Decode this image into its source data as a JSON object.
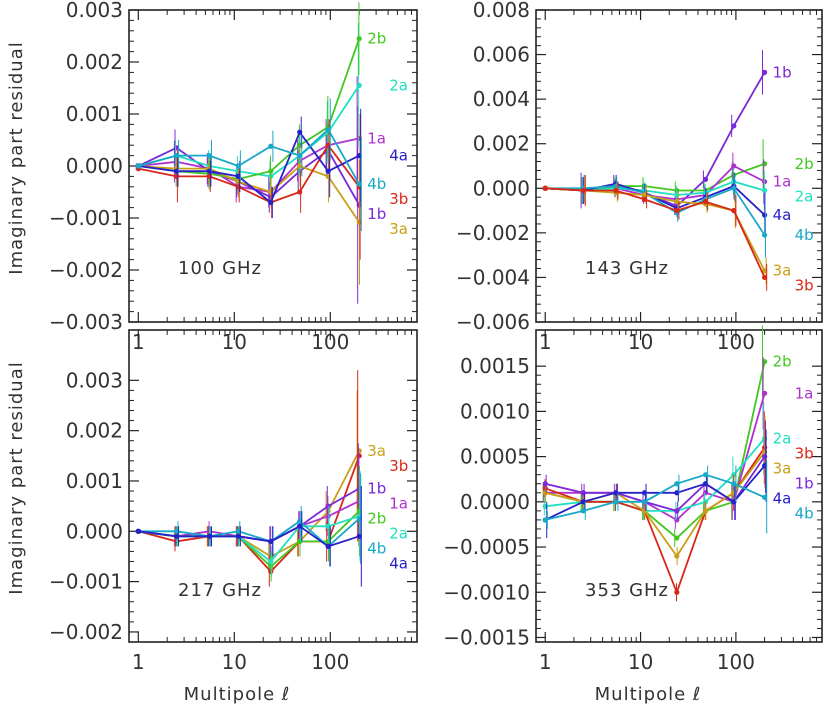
{
  "figure": {
    "ylabel": "Imaginary part residual",
    "xlabel": "Multipole ℓ"
  },
  "chart_data": [
    {
      "type": "line",
      "title": "100 GHz",
      "xscale": "log",
      "xlim": [
        0.8,
        800
      ],
      "ylim": [
        -0.003,
        0.003
      ],
      "yticks": [
        -0.003,
        -0.002,
        -0.001,
        0.0,
        0.001,
        0.002,
        0.003
      ],
      "ytick_labels": [
        "−0.003",
        "−0.002",
        "−0.001",
        "0.000",
        "0.001",
        "0.002",
        "0.003"
      ],
      "xticks": [
        1,
        10,
        100
      ],
      "xtick_labels": [
        "1",
        "10",
        "100"
      ],
      "x": [
        1,
        2.5,
        5.5,
        11,
        24,
        48,
        95,
        200
      ],
      "series": [
        {
          "name": "1a",
          "color": "#b030d0",
          "values": [
            0.0,
            8e-05,
            -5e-05,
            -0.0004,
            -0.0005,
            0.0001,
            0.0004,
            0.00053
          ],
          "err": [
            5e-05,
            0.0004,
            0.0003,
            0.0003,
            0.0003,
            0.0004,
            0.0005,
            0.0012
          ]
        },
        {
          "name": "1b",
          "color": "#7a28d8",
          "values": [
            0.0,
            0.00035,
            -0.0001,
            -0.0003,
            -0.0006,
            -0.0001,
            0.0003,
            -0.00075
          ],
          "err": [
            5e-05,
            0.00035,
            0.0003,
            0.0003,
            0.0003,
            0.0004,
            0.0005,
            0.0019
          ]
        },
        {
          "name": "2a",
          "color": "#20e0c0",
          "values": [
            0.0,
            0.0002,
            0.0,
            -0.0001,
            -0.0002,
            0.0002,
            0.00065,
            0.00155
          ],
          "err": [
            5e-05,
            0.0003,
            0.0003,
            0.0003,
            0.0003,
            0.0004,
            0.0006,
            0.0012
          ]
        },
        {
          "name": "2b",
          "color": "#40c820",
          "values": [
            0.0,
            -0.0001,
            -0.00015,
            -0.00025,
            -0.0001,
            0.0004,
            0.00075,
            0.00245
          ],
          "err": [
            5e-05,
            0.0003,
            0.0003,
            0.0003,
            0.0003,
            0.0004,
            0.0006,
            0.0007
          ]
        },
        {
          "name": "3a",
          "color": "#c8a018",
          "values": [
            0.0,
            -5e-05,
            -5e-05,
            -0.0003,
            -0.0005,
            0.0,
            -0.0002,
            -0.00108
          ],
          "err": [
            5e-05,
            0.0003,
            0.0003,
            0.0003,
            0.0003,
            0.0004,
            0.0005,
            0.0012
          ]
        },
        {
          "name": "3b",
          "color": "#d82818",
          "values": [
            -5e-05,
            -0.0002,
            -0.0002,
            -0.0004,
            -0.0007,
            -0.0005,
            0.0004,
            -0.0004
          ],
          "err": [
            5e-05,
            0.0005,
            0.0003,
            0.0003,
            0.0003,
            0.0004,
            0.0005,
            0.0014
          ]
        },
        {
          "name": "4a",
          "color": "#2820c8",
          "values": [
            0.0,
            -0.0001,
            -0.0001,
            -0.0002,
            -0.0007,
            0.00065,
            -0.0001,
            0.0002
          ],
          "err": [
            5e-05,
            0.0003,
            0.0003,
            0.0003,
            0.0003,
            0.0003,
            0.0005,
            0.0009
          ]
        },
        {
          "name": "4b",
          "color": "#18a8c8",
          "values": [
            0.0,
            0.0002,
            0.0002,
            0.0,
            0.00038,
            0.0002,
            0.0007,
            -0.00035
          ],
          "err": [
            5e-05,
            0.0003,
            0.0003,
            0.0003,
            0.0003,
            0.0004,
            0.0006,
            0.0009
          ]
        }
      ]
    },
    {
      "type": "line",
      "title": "143 GHz",
      "xscale": "log",
      "xlim": [
        0.8,
        800
      ],
      "ylim": [
        -0.006,
        0.008
      ],
      "yticks": [
        -0.006,
        -0.004,
        -0.002,
        0.0,
        0.002,
        0.004,
        0.006,
        0.008
      ],
      "ytick_labels": [
        "−0.006",
        "−0.004",
        "−0.002",
        "0.000",
        "0.002",
        "0.004",
        "0.006",
        "0.008"
      ],
      "xticks": [
        1,
        10,
        100
      ],
      "xtick_labels": [
        "1",
        "10",
        "100"
      ],
      "x": [
        1,
        2.5,
        5.5,
        11,
        24,
        48,
        95,
        200
      ],
      "series": [
        {
          "name": "1b",
          "color": "#7a28d8",
          "values": [
            0.0,
            -0.0001,
            0.0002,
            -0.0002,
            -0.0008,
            0.0004,
            0.0028,
            0.0052
          ],
          "err": [
            8e-05,
            0.0008,
            0.0004,
            0.0004,
            0.0004,
            0.0004,
            0.0005,
            0.001
          ]
        },
        {
          "name": "2b",
          "color": "#40c820",
          "values": [
            0.0,
            -0.0001,
            0.0001,
            0.0001,
            -0.0001,
            -0.0001,
            0.0006,
            0.0011
          ],
          "err": [
            8e-05,
            0.0006,
            0.0004,
            0.0004,
            0.0004,
            0.0004,
            0.0006,
            0.0011
          ]
        },
        {
          "name": "1a",
          "color": "#b030d0",
          "values": [
            0.0,
            -0.0001,
            0.0,
            -0.0003,
            -0.0005,
            -0.0003,
            0.001,
            0.0003
          ],
          "err": [
            8e-05,
            0.0006,
            0.0004,
            0.0004,
            0.0004,
            0.0004,
            0.0006,
            0.001
          ]
        },
        {
          "name": "2a",
          "color": "#20e0c0",
          "values": [
            0.0,
            -0.0001,
            0.0,
            -0.0001,
            -0.0003,
            -0.0002,
            0.0003,
            -0.0001
          ],
          "err": [
            8e-05,
            0.0006,
            0.0004,
            0.0004,
            0.0004,
            0.0004,
            0.0006,
            0.0009
          ]
        },
        {
          "name": "4a",
          "color": "#2820c8",
          "values": [
            0.0,
            -0.0001,
            0.0002,
            -0.0002,
            -0.0009,
            -0.0004,
            0.0001,
            -0.0012
          ],
          "err": [
            8e-05,
            0.0006,
            0.0004,
            0.0004,
            0.0004,
            0.0004,
            0.0006,
            0.001
          ]
        },
        {
          "name": "4b",
          "color": "#18a8c8",
          "values": [
            0.0,
            0.0,
            0.0001,
            -0.0002,
            -0.0011,
            -0.0005,
            0.0,
            -0.0021
          ],
          "err": [
            8e-05,
            0.0006,
            0.0004,
            0.0004,
            0.0004,
            0.0004,
            0.0006,
            0.001
          ]
        },
        {
          "name": "3a",
          "color": "#c8a018",
          "values": [
            0.0,
            -0.0001,
            -0.0002,
            -0.0003,
            -0.0006,
            -0.0007,
            -0.001,
            -0.0037
          ],
          "err": [
            8e-05,
            0.0006,
            0.0004,
            0.0004,
            0.0004,
            0.0004,
            0.0008,
            0.0006
          ]
        },
        {
          "name": "3b",
          "color": "#d82818",
          "values": [
            0.0,
            -0.0001,
            -0.0001,
            -0.0005,
            -0.001,
            -0.0006,
            -0.001,
            -0.004
          ],
          "err": [
            8e-05,
            0.0007,
            0.0004,
            0.0004,
            0.0004,
            0.0004,
            0.0007,
            0.0006
          ]
        }
      ]
    },
    {
      "type": "line",
      "title": "217 GHz",
      "xscale": "log",
      "xlim": [
        0.8,
        800
      ],
      "ylim": [
        -0.0022,
        0.004
      ],
      "yticks": [
        -0.002,
        -0.001,
        0.0,
        0.001,
        0.002,
        0.003
      ],
      "ytick_labels": [
        "−0.002",
        "−0.001",
        "0.000",
        "0.001",
        "0.002",
        "0.003"
      ],
      "xticks": [
        1,
        10,
        100
      ],
      "xtick_labels": [
        "1",
        "10",
        "100"
      ],
      "x": [
        1,
        2.5,
        5.5,
        11,
        24,
        48,
        95,
        200
      ],
      "series": [
        {
          "name": "3a",
          "color": "#c8a018",
          "values": [
            0.0,
            -0.0001,
            -0.0001,
            -0.0001,
            -0.0005,
            -0.0002,
            0.0004,
            0.0016
          ],
          "err": [
            4e-05,
            0.0002,
            0.0002,
            0.0002,
            0.0003,
            0.0003,
            0.0004,
            0.0012
          ]
        },
        {
          "name": "3b",
          "color": "#d82818",
          "values": [
            0.0,
            -0.0002,
            -0.0001,
            -0.0001,
            -0.0008,
            -0.0002,
            -0.0002,
            0.0015
          ],
          "err": [
            4e-05,
            0.0002,
            0.0002,
            0.0002,
            0.0003,
            0.0003,
            0.0004,
            0.0017
          ]
        },
        {
          "name": "1b",
          "color": "#7a28d8",
          "values": [
            0.0,
            -0.0001,
            -0.0001,
            -0.0001,
            -0.0002,
            0.0001,
            0.0005,
            0.00085
          ],
          "err": [
            4e-05,
            0.0002,
            0.0002,
            0.0002,
            0.0003,
            0.0003,
            0.0004,
            0.0009
          ]
        },
        {
          "name": "1a",
          "color": "#b030d0",
          "values": [
            0.0,
            -0.0001,
            0.0,
            -0.0001,
            -0.0002,
            0.0001,
            0.0003,
            0.0006
          ],
          "err": [
            4e-05,
            0.0002,
            0.0002,
            0.0002,
            0.0003,
            0.0003,
            0.0004,
            0.0009
          ]
        },
        {
          "name": "2b",
          "color": "#40c820",
          "values": [
            0.0,
            -0.0001,
            -0.0001,
            -0.0001,
            -0.0007,
            -0.0002,
            -0.0002,
            0.0004
          ],
          "err": [
            4e-05,
            0.0002,
            0.0002,
            0.0002,
            0.0003,
            0.0003,
            0.0004,
            0.0009
          ]
        },
        {
          "name": "2a",
          "color": "#20e0c0",
          "values": [
            0.0,
            -0.0001,
            -0.0001,
            -0.0001,
            -0.0006,
            0.0001,
            0.0001,
            0.0003
          ],
          "err": [
            4e-05,
            0.0002,
            0.0002,
            0.0002,
            0.0003,
            0.0003,
            0.0004,
            0.0009
          ]
        },
        {
          "name": "4b",
          "color": "#18a8c8",
          "values": [
            0.0,
            0.0,
            -0.0001,
            0.0,
            -0.0002,
            0.0002,
            -0.0003,
            0.00025
          ],
          "err": [
            4e-05,
            0.0002,
            0.0002,
            0.0002,
            0.0003,
            0.0003,
            0.0004,
            0.0009
          ]
        },
        {
          "name": "4a",
          "color": "#2820c8",
          "values": [
            0.0,
            -0.0001,
            -0.0001,
            -0.0001,
            -0.0002,
            0.0001,
            -0.0003,
            -0.0001
          ],
          "err": [
            4e-05,
            0.0002,
            0.0002,
            0.0002,
            0.0003,
            0.0003,
            0.0004,
            0.001
          ]
        }
      ]
    },
    {
      "type": "line",
      "title": "353 GHz",
      "xscale": "log",
      "xlim": [
        0.8,
        800
      ],
      "ylim": [
        -0.00155,
        0.0019
      ],
      "yticks": [
        -0.0015,
        -0.001,
        -0.0005,
        0.0,
        0.0005,
        0.001,
        0.0015
      ],
      "ytick_labels": [
        "−0.0015",
        "−0.0010",
        "−0.0005",
        "0.0000",
        "0.0005",
        "0.0010",
        "0.0015"
      ],
      "xticks": [
        1,
        10,
        100
      ],
      "xtick_labels": [
        "1",
        "10",
        "100"
      ],
      "x": [
        1,
        2.5,
        5.5,
        11,
        24,
        48,
        95,
        200
      ],
      "series": [
        {
          "name": "2b",
          "color": "#40c820",
          "values": [
            0.0001,
            0.0,
            0.0,
            -0.0001,
            -0.0004,
            -0.0001,
            0.0,
            0.00155
          ],
          "err": [
            0.0001,
            0.0001,
            0.0001,
            0.0001,
            0.0001,
            0.0001,
            0.0002,
            0.0004
          ]
        },
        {
          "name": "1a",
          "color": "#b030d0",
          "values": [
            0.0001,
            0.0001,
            0.0001,
            0.0,
            -0.0002,
            0.0001,
            0.0,
            0.0012
          ],
          "err": [
            0.0001,
            0.0001,
            0.0001,
            0.0001,
            0.0001,
            0.0001,
            0.0002,
            0.0004
          ]
        },
        {
          "name": "2a",
          "color": "#20e0c0",
          "values": [
            -5e-05,
            0.0,
            0.0,
            -0.0001,
            -0.0001,
            0.0,
            0.0003,
            0.0007
          ],
          "err": [
            0.0001,
            0.0001,
            0.0001,
            0.0001,
            0.0001,
            0.0001,
            0.0002,
            0.0004
          ]
        },
        {
          "name": "3b",
          "color": "#d82818",
          "values": [
            0.00015,
            0.0,
            0.0,
            -0.0001,
            -0.001,
            -0.0001,
            0.0001,
            0.0006
          ],
          "err": [
            0.0001,
            0.0001,
            0.0001,
            0.0001,
            0.0001,
            0.0001,
            0.0002,
            0.0004
          ]
        },
        {
          "name": "3a",
          "color": "#c8a018",
          "values": [
            0.0001,
            0.0,
            0.0001,
            -0.0001,
            -0.0006,
            -0.0001,
            0.0001,
            0.00055
          ],
          "err": [
            0.0001,
            0.0001,
            0.0001,
            0.0001,
            0.0001,
            0.0001,
            0.0002,
            0.0004
          ]
        },
        {
          "name": "1b",
          "color": "#7a28d8",
          "values": [
            0.0002,
            0.0001,
            0.0001,
            0.0,
            -0.0001,
            0.0002,
            0.0,
            0.0005
          ],
          "err": [
            0.0001,
            0.0001,
            0.0001,
            0.0001,
            0.0001,
            0.0001,
            0.0002,
            0.0004
          ]
        },
        {
          "name": "4a",
          "color": "#2820c8",
          "values": [
            -0.0002,
            0.0,
            0.0001,
            0.0001,
            0.0001,
            0.0002,
            0.0,
            0.0004
          ],
          "err": [
            0.0002,
            0.0001,
            0.0001,
            0.0001,
            0.0001,
            0.0001,
            0.0002,
            0.0004
          ]
        },
        {
          "name": "4b",
          "color": "#18a8c8",
          "values": [
            -0.0002,
            -0.0001,
            0.0,
            0.0,
            0.0002,
            0.0003,
            0.0002,
            5e-05
          ],
          "err": [
            0.0001,
            0.0001,
            0.0001,
            0.0001,
            0.0001,
            0.0001,
            0.0002,
            0.0004
          ]
        }
      ]
    }
  ]
}
